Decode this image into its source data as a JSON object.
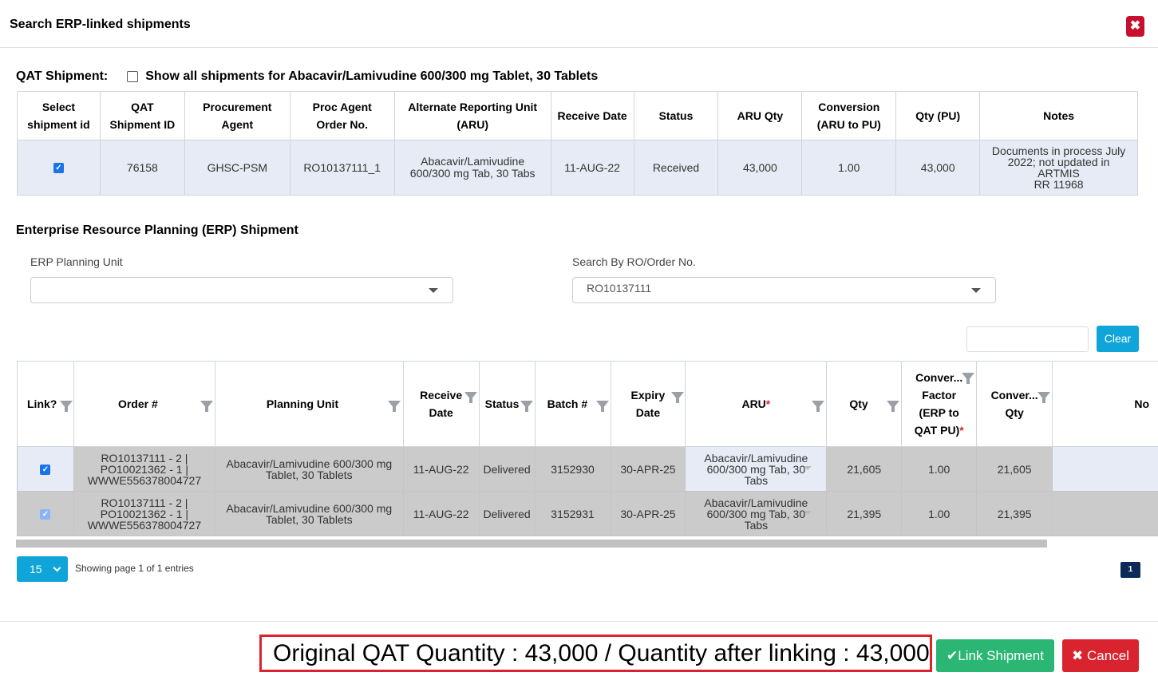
{
  "modal": {
    "title": "Search ERP-linked shipments",
    "close_icon": "x-icon"
  },
  "qat": {
    "label": "QAT Shipment:",
    "show_all_label": "Show all shipments for Abacavir/Lamivudine 600/300 mg Tablet, 30 Tablets",
    "show_all_checked": false,
    "columns": [
      "Select shipment id",
      "QAT Shipment ID",
      "Procurement Agent",
      "Proc Agent Order No.",
      "Alternate Reporting Unit (ARU)",
      "Receive Date",
      "Status",
      "ARU Qty",
      "Conversion (ARU to PU)",
      "Qty (PU)",
      "Notes"
    ],
    "row": {
      "selected": true,
      "shipment_id": "76158",
      "procurement_agent": "GHSC-PSM",
      "order_no": "RO10137111_1",
      "aru": "Abacavir/Lamivudine 600/300 mg Tab, 30 Tabs",
      "receive_date": "11-AUG-22",
      "status": "Received",
      "aru_qty": "43,000",
      "conversion": "1.00",
      "qty_pu": "43,000",
      "notes_l1": "Documents in process July",
      "notes_l2": "2022; not updated in",
      "notes_l3": "ARTMIS",
      "notes_l4": "RR 11968"
    }
  },
  "erp": {
    "title": "Enterprise Resource Planning (ERP) Shipment",
    "planning_unit_label": "ERP Planning Unit",
    "planning_unit_value": "",
    "search_label": "Search By RO/Order No.",
    "search_value": "RO10137111",
    "clear_label": "Clear",
    "columns": {
      "link": "Link?",
      "order": "Order #",
      "planning_unit": "Planning Unit",
      "receive_date_1": "Receive",
      "receive_date_2": "Date",
      "status": "Status",
      "batch": "Batch #",
      "expiry_1": "Expiry",
      "expiry_2": "Date",
      "aru": "ARU",
      "qty": "Qty",
      "conv_factor_1": "Conver...",
      "conv_factor_2": "Factor",
      "conv_factor_3": "(ERP to",
      "conv_factor_4": "QAT PU)",
      "conv_qty_1": "Conver...",
      "conv_qty_2": "Qty",
      "notes": "No"
    },
    "rows": [
      {
        "linked": true,
        "order_l1": "RO10137111 - 2 |",
        "order_l2": "PO10021362 - 1 |",
        "order_l3": "WWWE556378004727",
        "pu_l1": "Abacavir/Lamivudine 600/300 mg",
        "pu_l2": "Tablet, 30 Tablets",
        "receive_date": "11-AUG-22",
        "status": "Delivered",
        "batch": "3152930",
        "expiry": "30-APR-25",
        "aru_l1": "Abacavir/Lamivudine",
        "aru_l2": "600/300 mg Tab, 30",
        "aru_l3": "Tabs",
        "qty": "21,605",
        "factor": "1.00",
        "conv_qty": "21,605"
      },
      {
        "linked": true,
        "order_l1": "RO10137111 - 2 |",
        "order_l2": "PO10021362 - 1 |",
        "order_l3": "WWWE556378004727",
        "pu_l1": "Abacavir/Lamivudine 600/300 mg",
        "pu_l2": "Tablet, 30 Tablets",
        "receive_date": "11-AUG-22",
        "status": "Delivered",
        "batch": "3152931",
        "expiry": "30-APR-25",
        "aru_l1": "Abacavir/Lamivudine",
        "aru_l2": "600/300 mg Tab, 30",
        "aru_l3": "Tabs",
        "qty": "21,395",
        "factor": "1.00",
        "conv_qty": "21,395"
      }
    ]
  },
  "pagination": {
    "page_size": "15",
    "info": "Showing page 1 of 1 entries",
    "current_page": "1"
  },
  "footer": {
    "qty_summary": "Original QAT Quantity : 43,000 / Quantity after linking : 43,000",
    "link_label": "Link Shipment",
    "cancel_label": "Cancel"
  },
  "colors": {
    "primary": "#0fa5d8",
    "danger": "#d9232e",
    "success": "#2bb673",
    "selected_row": "#e6ebf5"
  }
}
